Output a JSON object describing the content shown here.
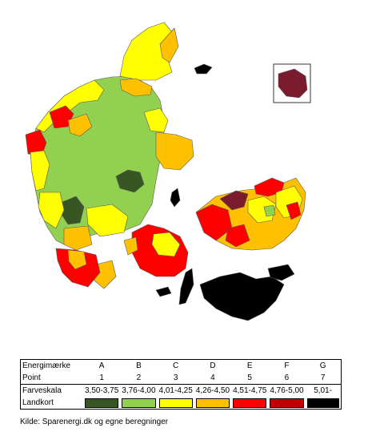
{
  "map": {
    "colors": {
      "A": "#375623",
      "B": "#92d050",
      "C": "#ffff00",
      "D": "#ffc000",
      "E": "#ff0000",
      "F": "#c00000",
      "G": "#000000",
      "inset": "#7b1c2e"
    }
  },
  "legend": {
    "row_labels": {
      "grade": "Energimærke",
      "points": "Point",
      "scale": "Farveskala",
      "map": "Landkort"
    },
    "grades": [
      {
        "letter": "A",
        "point": "1",
        "range": "3,50-3,75",
        "color": "#375623"
      },
      {
        "letter": "B",
        "point": "2",
        "range": "3,76-4,00",
        "color": "#92d050"
      },
      {
        "letter": "C",
        "point": "3",
        "range": "4,01-4,25",
        "color": "#ffff00"
      },
      {
        "letter": "D",
        "point": "4",
        "range": "4,26-4,50",
        "color": "#ffc000"
      },
      {
        "letter": "E",
        "point": "5",
        "range": "4,51-4,75",
        "color": "#ff0000"
      },
      {
        "letter": "F",
        "point": "6",
        "range": "4,76-5,00",
        "color": "#c00000"
      },
      {
        "letter": "G",
        "point": "7",
        "range": "5,01-",
        "color": "#000000"
      }
    ]
  },
  "source": "Kilde: Sparenergi.dk og egne beregninger"
}
